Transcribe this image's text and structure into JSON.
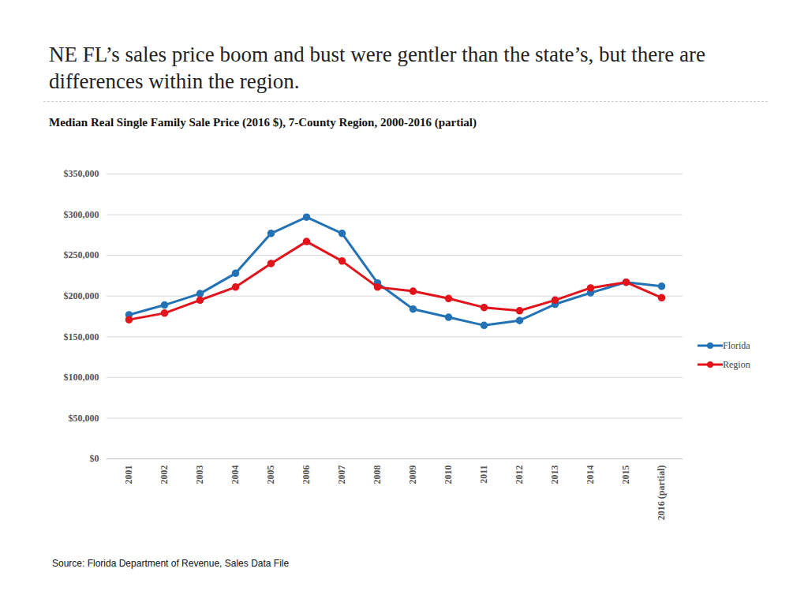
{
  "chart_data": {
    "type": "line",
    "title": "NE FL’s sales price boom and bust were gentler than the state’s, but there are differences within the region.",
    "subtitle": "Median Real Single Family Sale Price (2016 $), 7-County Region, 2000-2016 (partial)",
    "caption": "Source: Florida Department of Revenue, Sales Data File",
    "categories": [
      "2001",
      "2002",
      "2003",
      "2004",
      "2005",
      "2006",
      "2007",
      "2008",
      "2009",
      "2010",
      "2011",
      "2012",
      "2013",
      "2014",
      "2015",
      "2016 (partial)"
    ],
    "series": [
      {
        "name": "Florida",
        "color": "#2472b6",
        "marker": "circle",
        "values": [
          177000,
          189000,
          203000,
          228000,
          277000,
          297000,
          277000,
          216000,
          184000,
          174000,
          164000,
          170000,
          190000,
          204000,
          217000,
          212000
        ]
      },
      {
        "name": "Region",
        "color": "#e3131b",
        "marker": "circle",
        "values": [
          171000,
          179000,
          195000,
          211000,
          240000,
          267000,
          243000,
          211000,
          206000,
          197000,
          186000,
          182000,
          195000,
          210000,
          217000,
          198000
        ]
      }
    ],
    "ylim": [
      0,
      350000
    ],
    "yticks": [
      {
        "value": 0,
        "label": "$0"
      },
      {
        "value": 50000,
        "label": "$50,000"
      },
      {
        "value": 100000,
        "label": "$100,000"
      },
      {
        "value": 150000,
        "label": "$150,000"
      },
      {
        "value": 200000,
        "label": "$200,000"
      },
      {
        "value": 250000,
        "label": "$250,000"
      },
      {
        "value": 300000,
        "label": "$300,000"
      },
      {
        "value": 350000,
        "label": "$350,000"
      }
    ],
    "grid": true,
    "legend": "right"
  }
}
